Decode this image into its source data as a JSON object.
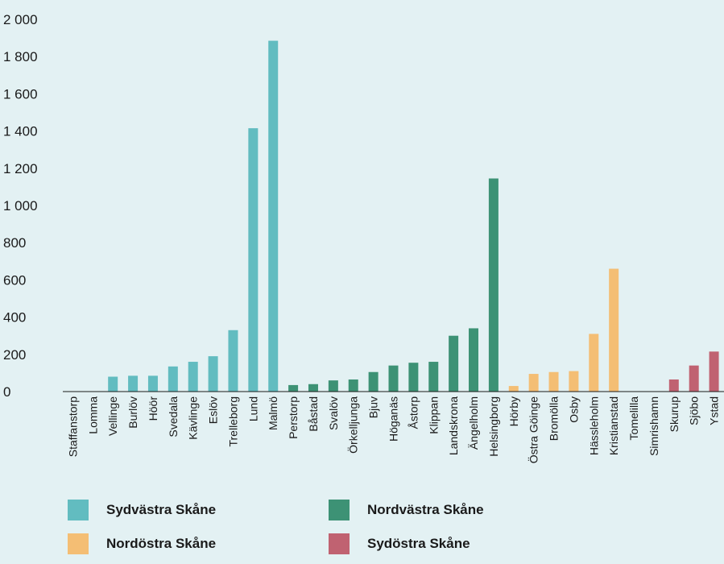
{
  "chart_data": {
    "type": "bar",
    "ylim": [
      0,
      2000
    ],
    "yticks": [
      0,
      200,
      400,
      600,
      800,
      1000,
      1200,
      1400,
      1600,
      1800,
      2000
    ],
    "ytick_labels": [
      "0",
      "200",
      "400",
      "600",
      "800",
      "1 000",
      "1 200",
      "1 400",
      "1 600",
      "1 800",
      "2 000"
    ],
    "grid": false,
    "legend_position": "bottom",
    "categories": [
      "Staffanstorp",
      "Lomma",
      "Vellinge",
      "Burlöv",
      "Höör",
      "Svedala",
      "Kävlinge",
      "Eslöv",
      "Trelleborg",
      "Lund",
      "Malmö",
      "Perstorp",
      "Båstad",
      "Svalöv",
      "Örkelljunga",
      "Bjuv",
      "Höganäs",
      "Åstorp",
      "Klippan",
      "Landskrona",
      "Ängelholm",
      "Helsingborg",
      "Hörby",
      "Östra Göinge",
      "Bromölla",
      "Osby",
      "Hässleholm",
      "Kristianstad",
      "Tomelilla",
      "Simrishamn",
      "Skurup",
      "Sjöbo",
      "Ystad"
    ],
    "values": [
      0,
      0,
      80,
      85,
      85,
      135,
      160,
      190,
      330,
      1415,
      1885,
      35,
      40,
      60,
      65,
      105,
      140,
      155,
      160,
      300,
      340,
      1145,
      30,
      95,
      105,
      110,
      310,
      660,
      0,
      0,
      65,
      140,
      215
    ],
    "groups": [
      0,
      0,
      0,
      0,
      0,
      0,
      0,
      0,
      0,
      0,
      0,
      1,
      1,
      1,
      1,
      1,
      1,
      1,
      1,
      1,
      1,
      1,
      2,
      2,
      2,
      2,
      2,
      2,
      3,
      3,
      3,
      3,
      3
    ],
    "series": [
      {
        "name": "Sydvästra Skåne",
        "color": "#62bcc0"
      },
      {
        "name": "Nordvästra Skåne",
        "color": "#3d9275"
      },
      {
        "name": "Nordöstra Skåne",
        "color": "#f4be74"
      },
      {
        "name": "Sydöstra Skåne",
        "color": "#c06271"
      }
    ]
  }
}
